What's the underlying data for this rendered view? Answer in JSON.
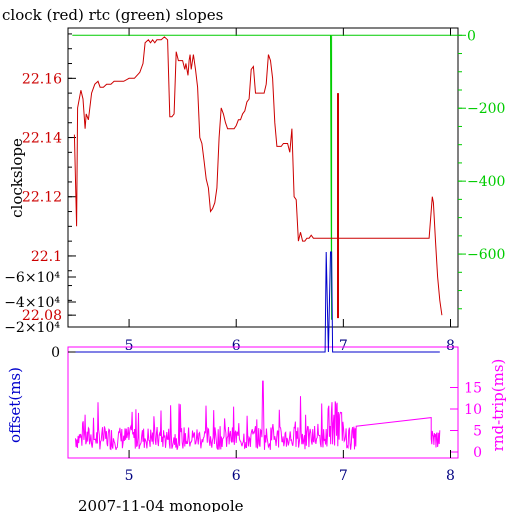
{
  "chart_data": [
    {
      "type": "line",
      "title": "clock (red) rtc (green) slopes",
      "xlabel": "",
      "ylabel": "clockslope",
      "xlim": [
        4.43,
        8.07
      ],
      "ylim": [
        22.076,
        22.177
      ],
      "y2lim": [
        -800,
        20
      ],
      "xticks": [
        5,
        6,
        7,
        8
      ],
      "yticks": [
        22.08,
        22.1,
        22.12,
        22.14,
        22.16
      ],
      "ytick_labels": [
        "22.08",
        "22.1",
        "22.12",
        "22.14",
        "22.16"
      ],
      "y2ticks": [
        0,
        -200,
        -400,
        -600
      ],
      "y2tick_labels": [
        "0",
        "−200",
        "−400",
        "−600"
      ],
      "colors": {
        "clock": "#cc0000",
        "rtc": "#00cc00",
        "axis": "#000000",
        "y_ticks": "#cc0000",
        "y2_ticks": "#00cc00",
        "x_ticks": "#000080"
      },
      "series": [
        {
          "name": "clock",
          "axis": "left",
          "x": [
            4.49,
            4.51,
            4.52,
            4.55,
            4.57,
            4.59,
            4.6,
            4.62,
            4.65,
            4.68,
            4.71,
            4.73,
            4.76,
            4.79,
            4.83,
            4.86,
            4.9,
            4.95,
            5.0,
            5.05,
            5.1,
            5.13,
            5.15,
            5.18,
            5.2,
            5.22,
            5.24,
            5.26,
            5.3,
            5.33,
            5.36,
            5.38,
            5.4,
            5.42,
            5.44,
            5.46,
            5.48,
            5.5,
            5.52,
            5.53,
            5.55,
            5.56,
            5.57,
            5.58,
            5.6,
            5.62,
            5.64,
            5.66,
            5.68,
            5.7,
            5.72,
            5.74,
            5.76,
            5.78,
            5.8,
            5.82,
            5.84,
            5.86,
            5.88,
            5.9,
            5.92,
            5.94,
            5.96,
            5.98,
            6.0,
            6.02,
            6.04,
            6.06,
            6.08,
            6.1,
            6.12,
            6.14,
            6.16,
            6.18,
            6.2,
            6.22,
            6.24,
            6.26,
            6.28,
            6.3,
            6.32,
            6.34,
            6.36,
            6.38,
            6.4,
            6.42,
            6.44,
            6.46,
            6.48,
            6.5,
            6.52,
            6.54,
            6.56,
            6.58,
            6.6,
            6.62,
            6.64,
            6.66,
            6.68,
            6.7,
            6.72,
            6.74,
            6.76,
            6.78,
            6.8,
            6.82,
            6.84,
            6.86,
            6.88,
            6.89,
            6.9,
            6.91,
            6.92,
            6.93,
            6.94,
            6.95,
            6.96,
            6.97,
            6.98,
            6.99,
            7.0,
            7.1,
            7.2,
            7.3,
            7.4,
            7.5,
            7.6,
            7.7,
            7.8,
            7.83,
            7.84,
            7.86,
            7.88,
            7.9,
            7.92
          ],
          "y": [
            22.141,
            22.11,
            22.15,
            22.156,
            22.153,
            22.143,
            22.148,
            22.146,
            22.155,
            22.158,
            22.159,
            22.157,
            22.157,
            22.158,
            22.158,
            22.159,
            22.159,
            22.159,
            22.16,
            22.16,
            22.162,
            22.165,
            22.172,
            22.173,
            22.172,
            22.173,
            22.172,
            22.173,
            22.173,
            22.174,
            22.173,
            22.147,
            22.147,
            22.148,
            22.169,
            22.166,
            22.166,
            22.166,
            22.163,
            22.165,
            22.161,
            22.166,
            22.168,
            22.163,
            22.168,
            22.163,
            22.157,
            22.14,
            22.138,
            22.132,
            22.126,
            22.123,
            22.115,
            22.116,
            22.118,
            22.123,
            22.14,
            22.15,
            22.148,
            22.145,
            22.143,
            22.143,
            22.143,
            22.143,
            22.144,
            22.146,
            22.146,
            22.148,
            22.149,
            22.152,
            22.153,
            22.163,
            22.164,
            22.155,
            22.155,
            22.155,
            22.155,
            22.155,
            22.158,
            22.168,
            22.166,
            22.16,
            22.145,
            22.137,
            22.137,
            22.137,
            22.138,
            22.138,
            22.138,
            22.135,
            22.143,
            22.12,
            22.119,
            22.105,
            22.108,
            22.105,
            22.105,
            22.106,
            22.106,
            22.107,
            22.106,
            22.106,
            22.106,
            22.106,
            22.106,
            22.106,
            22.106,
            22.106,
            22.106,
            22.106,
            22.106,
            22.106,
            22.106,
            22.106,
            22.106,
            22.106,
            22.106,
            22.106,
            22.106,
            22.106,
            22.106,
            22.106,
            22.106,
            22.106,
            22.106,
            22.106,
            22.106,
            22.106,
            22.106,
            22.12,
            22.118,
            22.105,
            22.093,
            22.085,
            22.08
          ]
        },
        {
          "name": "rtc",
          "axis": "right",
          "x": [
            4.47,
            6.88,
            6.89,
            6.89,
            8.07
          ],
          "y": [
            0,
            0,
            -780,
            0,
            0
          ]
        }
      ],
      "spikes": {
        "x": [
          6.95,
          6.96
        ],
        "y": [
          22.155,
          22.079
        ]
      }
    },
    {
      "type": "line",
      "title": "",
      "xlim": [
        4.43,
        8.07
      ],
      "ylabel": "offset(ms)",
      "y2label": "rnd-trip(ms)",
      "xticks": [
        5,
        6,
        7,
        8
      ],
      "yticks": [
        0,
        -20000,
        -40000,
        -60000
      ],
      "ytick_labels": [
        "0",
        "−2×10⁴",
        "−4×10⁴",
        "−6×10⁴"
      ],
      "y2ticks": [
        0,
        5,
        10,
        15
      ],
      "y2tick_labels": [
        "0",
        "5",
        "10",
        "15"
      ],
      "colors": {
        "offset": "#0000cc",
        "rndtrip": "#ff00ff",
        "axis": "#ff00ff"
      },
      "series": [
        {
          "name": "offset",
          "axis": "left",
          "x": [
            4.5,
            6.83,
            6.84,
            6.86,
            6.88,
            6.89,
            6.9,
            6.91,
            7.9
          ],
          "y": [
            0,
            0,
            -80000,
            0,
            -80000,
            -80000,
            0,
            0,
            0
          ]
        },
        {
          "name": "rnd-trip",
          "axis": "right",
          "x": [
            4.5,
            7.1,
            7.8
          ],
          "y": [
            2,
            5,
            7
          ]
        }
      ]
    }
  ],
  "footer": "2007-11-04 monopole"
}
